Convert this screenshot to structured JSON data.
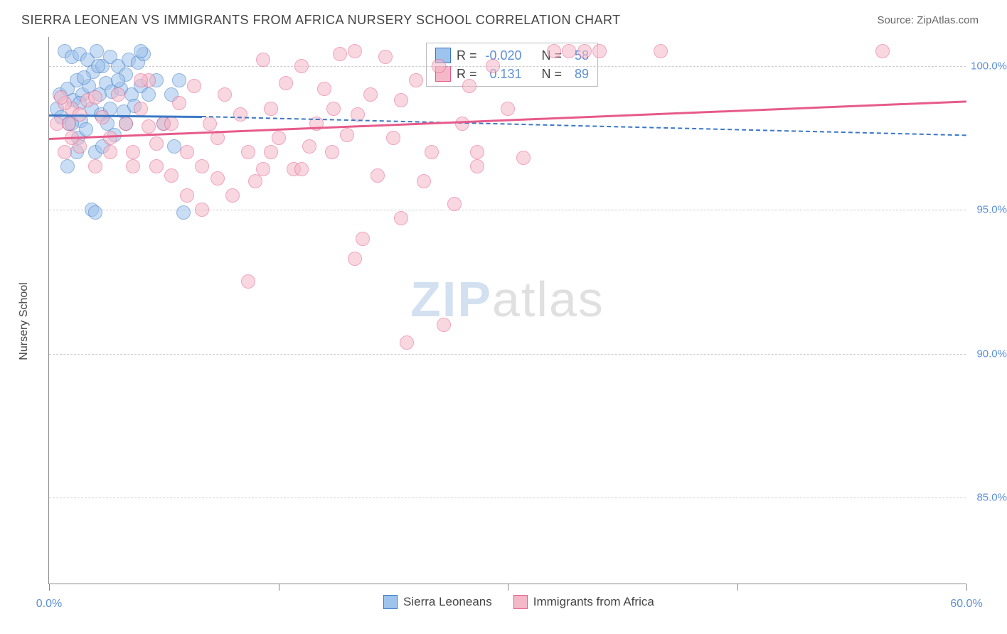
{
  "title": "SIERRA LEONEAN VS IMMIGRANTS FROM AFRICA NURSERY SCHOOL CORRELATION CHART",
  "source": "Source: ZipAtlas.com",
  "watermark": {
    "bold": "ZIP",
    "rest": "atlas"
  },
  "chart": {
    "type": "scatter",
    "ylabel": "Nursery School",
    "xlim": [
      0,
      60
    ],
    "ylim": [
      82,
      101
    ],
    "xticks": [
      0,
      15,
      30,
      45,
      60
    ],
    "xtick_labels": [
      "0.0%",
      "",
      "",
      "",
      "60.0%"
    ],
    "yticks": [
      85,
      90,
      95,
      100
    ],
    "ytick_labels": [
      "85.0%",
      "90.0%",
      "95.0%",
      "100.0%"
    ],
    "background_color": "#ffffff",
    "grid_color": "#cccccc",
    "grid_dash": true,
    "marker_radius": 10,
    "marker_opacity": 0.55,
    "series": [
      {
        "name": "Sierra Leoneans",
        "color_fill": "#9ec3ec",
        "color_stroke": "#3b78c4",
        "R": "-0.020",
        "N": "58",
        "trend": {
          "x1": 0,
          "y1": 98.3,
          "x2": 10,
          "y2": 98.25,
          "width": 3,
          "dash": false,
          "extend_x2": 60,
          "extend_y2": 97.6,
          "extend_dash": true
        },
        "points": [
          [
            0.5,
            98.5
          ],
          [
            0.7,
            99.0
          ],
          [
            0.8,
            98.2
          ],
          [
            1.0,
            100.5
          ],
          [
            1.2,
            99.2
          ],
          [
            1.3,
            98.0
          ],
          [
            1.5,
            100.3
          ],
          [
            1.6,
            98.8
          ],
          [
            1.8,
            99.5
          ],
          [
            1.9,
            97.5
          ],
          [
            2.0,
            100.4
          ],
          [
            2.1,
            98.1
          ],
          [
            2.2,
            99.0
          ],
          [
            2.4,
            97.8
          ],
          [
            2.5,
            100.2
          ],
          [
            2.6,
            99.3
          ],
          [
            2.8,
            98.5
          ],
          [
            2.9,
            99.8
          ],
          [
            3.0,
            97.0
          ],
          [
            3.1,
            100.5
          ],
          [
            3.3,
            99.0
          ],
          [
            3.4,
            98.3
          ],
          [
            3.5,
            100.0
          ],
          [
            3.7,
            99.4
          ],
          [
            3.8,
            98.0
          ],
          [
            4.0,
            100.3
          ],
          [
            4.1,
            99.1
          ],
          [
            4.3,
            97.6
          ],
          [
            4.5,
            100.0
          ],
          [
            4.7,
            99.2
          ],
          [
            4.9,
            98.4
          ],
          [
            5.0,
            99.7
          ],
          [
            5.2,
            100.2
          ],
          [
            5.4,
            99.0
          ],
          [
            5.6,
            98.6
          ],
          [
            5.8,
            100.1
          ],
          [
            6.0,
            99.3
          ],
          [
            6.2,
            100.4
          ],
          [
            6.5,
            99.0
          ],
          [
            2.8,
            95.0
          ],
          [
            1.2,
            96.5
          ],
          [
            1.8,
            97.0
          ],
          [
            3.5,
            97.2
          ],
          [
            7.0,
            99.5
          ],
          [
            7.5,
            98.0
          ],
          [
            8.0,
            99.0
          ],
          [
            8.2,
            97.2
          ],
          [
            8.5,
            99.5
          ],
          [
            3.0,
            94.9
          ],
          [
            8.8,
            94.9
          ],
          [
            1.5,
            98.0
          ],
          [
            2.0,
            98.7
          ],
          [
            4.0,
            98.5
          ],
          [
            5.0,
            98.0
          ],
          [
            6.0,
            100.5
          ],
          [
            2.3,
            99.6
          ],
          [
            3.2,
            100.0
          ],
          [
            4.5,
            99.5
          ]
        ]
      },
      {
        "name": "Immigrants from Africa",
        "color_fill": "#f4b8c8",
        "color_stroke": "#e65b8a",
        "R": "0.131",
        "N": "89",
        "trend": {
          "x1": 0,
          "y1": 97.5,
          "x2": 60,
          "y2": 98.8,
          "width": 3,
          "dash": false
        },
        "points": [
          [
            0.5,
            98.0
          ],
          [
            1.0,
            97.0
          ],
          [
            1.5,
            98.5
          ],
          [
            2.0,
            97.2
          ],
          [
            2.5,
            98.8
          ],
          [
            3.0,
            96.5
          ],
          [
            3.5,
            98.2
          ],
          [
            4.0,
            97.5
          ],
          [
            4.5,
            99.0
          ],
          [
            5.0,
            98.0
          ],
          [
            5.5,
            97.0
          ],
          [
            6.0,
            98.5
          ],
          [
            6.5,
            99.5
          ],
          [
            7.0,
            97.3
          ],
          [
            7.5,
            98.0
          ],
          [
            8.0,
            96.2
          ],
          [
            8.5,
            98.7
          ],
          [
            9.0,
            97.0
          ],
          [
            9.5,
            99.3
          ],
          [
            10.0,
            96.5
          ],
          [
            10.5,
            98.0
          ],
          [
            11.0,
            97.5
          ],
          [
            11.5,
            99.0
          ],
          [
            12.0,
            95.5
          ],
          [
            12.5,
            98.3
          ],
          [
            13.0,
            97.0
          ],
          [
            13.5,
            96.0
          ],
          [
            14.0,
            100.2
          ],
          [
            14.5,
            98.5
          ],
          [
            15.0,
            97.5
          ],
          [
            15.5,
            99.4
          ],
          [
            16.0,
            96.4
          ],
          [
            16.5,
            100.0
          ],
          [
            17.0,
            97.2
          ],
          [
            17.5,
            98.0
          ],
          [
            18.0,
            99.2
          ],
          [
            18.6,
            98.5
          ],
          [
            19.0,
            100.4
          ],
          [
            19.5,
            97.6
          ],
          [
            20.0,
            100.5
          ],
          [
            20.2,
            98.3
          ],
          [
            20.5,
            94.0
          ],
          [
            21.0,
            99.0
          ],
          [
            21.5,
            96.2
          ],
          [
            22.0,
            100.3
          ],
          [
            22.5,
            97.5
          ],
          [
            23.0,
            98.8
          ],
          [
            23.4,
            90.4
          ],
          [
            24.0,
            99.5
          ],
          [
            24.5,
            96.0
          ],
          [
            25.0,
            97.0
          ],
          [
            25.5,
            100.0
          ],
          [
            25.8,
            91.0
          ],
          [
            26.5,
            95.2
          ],
          [
            27.0,
            98.0
          ],
          [
            27.5,
            99.3
          ],
          [
            28.0,
            96.5
          ],
          [
            29.0,
            100.0
          ],
          [
            30.0,
            98.5
          ],
          [
            31.0,
            96.8
          ],
          [
            33.0,
            100.5
          ],
          [
            34.0,
            100.5
          ],
          [
            35.0,
            100.5
          ],
          [
            36.0,
            100.5
          ],
          [
            40.0,
            100.5
          ],
          [
            54.5,
            100.5
          ],
          [
            23.0,
            94.7
          ],
          [
            13.0,
            92.5
          ],
          [
            16.5,
            96.4
          ],
          [
            20.0,
            93.3
          ],
          [
            5.5,
            96.5
          ],
          [
            7.0,
            96.5
          ],
          [
            9.0,
            95.5
          ],
          [
            10.0,
            95.0
          ],
          [
            11.0,
            96.1
          ],
          [
            2.0,
            98.3
          ],
          [
            3.0,
            98.9
          ],
          [
            4.0,
            97.0
          ],
          [
            6.5,
            97.9
          ],
          [
            8.0,
            98.0
          ],
          [
            1.0,
            98.7
          ],
          [
            1.5,
            97.5
          ],
          [
            0.8,
            98.9
          ],
          [
            1.3,
            98.0
          ],
          [
            6.0,
            99.5
          ],
          [
            14.0,
            96.4
          ],
          [
            14.5,
            97.0
          ],
          [
            18.5,
            97.0
          ],
          [
            28.0,
            97.0
          ]
        ]
      }
    ]
  },
  "legend_top": {
    "rows": [
      {
        "swatch_fill": "#9ec3ec",
        "swatch_stroke": "#3b78c4",
        "r_lbl": "R =",
        "r_val": "-0.020",
        "n_lbl": "N =",
        "n_val": "58"
      },
      {
        "swatch_fill": "#f4b8c8",
        "swatch_stroke": "#e65b8a",
        "r_lbl": "R =",
        "r_val": "0.131",
        "n_lbl": "N =",
        "n_val": "89"
      }
    ]
  },
  "legend_bottom": {
    "items": [
      {
        "swatch_fill": "#9ec3ec",
        "swatch_stroke": "#3b78c4",
        "label": "Sierra Leoneans"
      },
      {
        "swatch_fill": "#f4b8c8",
        "swatch_stroke": "#e65b8a",
        "label": "Immigrants from Africa"
      }
    ]
  }
}
